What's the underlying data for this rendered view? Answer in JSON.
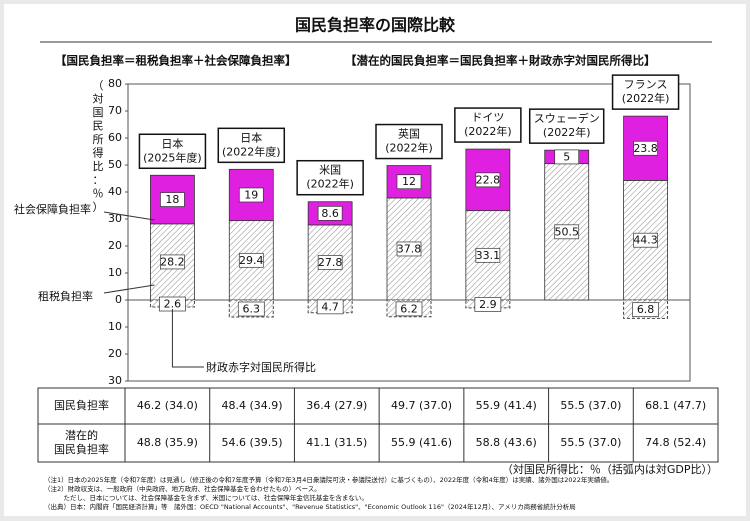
{
  "chart_data": {
    "type": "bar",
    "stacked": true,
    "title": "国民負担率の国際比較",
    "subtitles": [
      "【国民負担率＝租税負担率＋社会保障負担率】",
      "【潜在的国民負担率＝国民負担率＋財政赤字対国民所得比】"
    ],
    "y_label": "（対国民所得比：％）",
    "categories": [
      [
        "日本",
        "(2025年度)"
      ],
      [
        "日本",
        "(2022年度)"
      ],
      [
        "米国",
        "(2022年)"
      ],
      [
        "英国",
        "(2022年)"
      ],
      [
        "ドイツ",
        "(2022年)"
      ],
      [
        "スウェーデン",
        "(2022年)"
      ],
      [
        "フランス",
        "(2022年)"
      ]
    ],
    "series": [
      {
        "name": "租税負担率",
        "color": "#8c8c8c",
        "values": [
          28.2,
          29.4,
          27.8,
          37.8,
          33.1,
          50.5,
          44.3
        ]
      },
      {
        "name": "社会保障負担率",
        "color": "#e020e0",
        "values": [
          18.0,
          19.0,
          8.6,
          12.0,
          22.8,
          5.0,
          23.8
        ]
      },
      {
        "name": "財政赤字対国民所得比",
        "color": "#8c8c8c",
        "direction": "down",
        "values": [
          2.6,
          6.3,
          4.7,
          6.2,
          2.9,
          null,
          6.8
        ]
      }
    ],
    "ylim": [
      -30,
      80
    ],
    "yticks": [
      {
        "value": -30,
        "label": "30"
      },
      {
        "value": -20,
        "label": "20"
      },
      {
        "value": -10,
        "label": "10"
      },
      0,
      10,
      20,
      30,
      40,
      50,
      60,
      70,
      80
    ],
    "grid": false
  },
  "table": {
    "unit_note": "（対国民所得比：％（括弧内は対GDP比））",
    "rows": [
      {
        "label": [
          "国民負担率"
        ],
        "cells": [
          "46.2 (34.0)",
          "48.4 (34.9)",
          "36.4 (27.9)",
          "49.7 (37.0)",
          "55.9 (41.4)",
          "55.5 (37.0)",
          "68.1 (47.7)"
        ]
      },
      {
        "label": [
          "潜在的",
          "国民負担率"
        ],
        "cells": [
          "48.8 (35.9)",
          "54.6 (39.5)",
          "41.1 (31.5)",
          "55.9 (41.6)",
          "58.8 (43.6)",
          "55.5 (37.0)",
          "74.8 (52.4)"
        ]
      }
    ]
  },
  "notes": [
    "（注1）日本の2025年度（令和7年度）は見通し（修正後の令和7年度予算（令和7年3月4日衆議院可決・参議院送付）に基づくもの）、2022年度（令和4年度）は実績、諸外国は2022年実績値。",
    "（注2）財政収支は、一般政府（中央政府、地方政府、社会保障基金を合わせたもの）ベース。",
    "　　　ただし、日本については、社会保障基金を含まず、米国については、社会保障年金信託基金を含まない。",
    "（出典）日本：内閣府「国民経済計算」等　諸外国：OECD \"National Accounts\"、\"Revenue Statistics\"、\"Economic Outlook 116\"（2024年12月）、アメリカ商務省統計分析局"
  ]
}
